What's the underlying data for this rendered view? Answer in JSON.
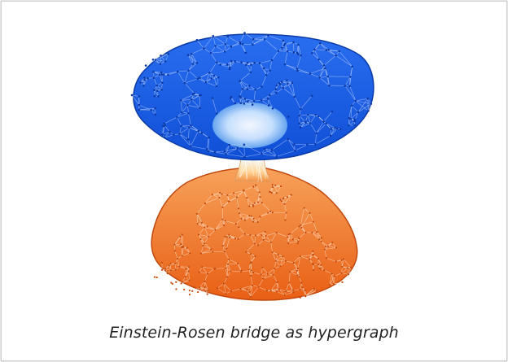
{
  "caption": "Einstein-Rosen bridge as hypergraph",
  "colors": {
    "top_sheet": "#1c5fe6",
    "top_sheet_dark": "#0b3fb8",
    "bottom_sheet": "#f26a1c",
    "bottom_sheet_dark": "#c84a0c",
    "throat_light": "#e8f2ff",
    "throat_warm": "#ffe2b0"
  }
}
